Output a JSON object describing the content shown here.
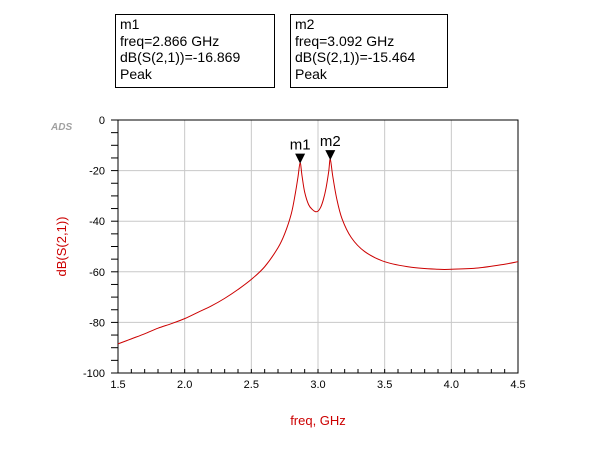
{
  "logo": "ADS",
  "markers": [
    {
      "label": "m1",
      "freq_text": "freq=2.866 GHz",
      "value_text": "dB(S(2,1))=-16.869",
      "note": "Peak",
      "x": 2.866,
      "y": -16.869
    },
    {
      "label": "m2",
      "freq_text": "freq=3.092 GHz",
      "value_text": "dB(S(2,1))=-15.464",
      "note": "Peak",
      "x": 3.092,
      "y": -15.464
    }
  ],
  "chart_data": {
    "type": "line",
    "xlabel": "freq, GHz",
    "ylabel": "dB(S(2,1))",
    "xlim": [
      1.5,
      4.5
    ],
    "ylim": [
      -100,
      0
    ],
    "xticks": [
      "1.5",
      "2.0",
      "2.5",
      "3.0",
      "3.5",
      "4.0",
      "4.5"
    ],
    "yticks": [
      "0",
      "-20",
      "-40",
      "-60",
      "-80",
      "-100"
    ],
    "grid": true,
    "series": [
      {
        "color": "#cc0000",
        "x": [
          1.5,
          1.6,
          1.7,
          1.8,
          1.9,
          2.0,
          2.1,
          2.2,
          2.3,
          2.4,
          2.5,
          2.6,
          2.7,
          2.75,
          2.8,
          2.83,
          2.85,
          2.866,
          2.88,
          2.9,
          2.93,
          2.96,
          2.98,
          3.0,
          3.02,
          3.04,
          3.06,
          3.08,
          3.092,
          3.11,
          3.14,
          3.18,
          3.25,
          3.35,
          3.5,
          3.7,
          3.9,
          4.0,
          4.2,
          4.4,
          4.5
        ],
        "y": [
          -88.5,
          -86.5,
          -84.5,
          -82.3,
          -80.5,
          -78.5,
          -76.0,
          -73.5,
          -70.5,
          -67.0,
          -63.0,
          -58.0,
          -50.5,
          -45.0,
          -37.0,
          -29.0,
          -22.5,
          -16.9,
          -22.0,
          -28.5,
          -33.5,
          -35.5,
          -36.2,
          -36.0,
          -34.5,
          -31.5,
          -27.0,
          -20.5,
          -15.5,
          -22.0,
          -31.0,
          -39.0,
          -46.5,
          -52.0,
          -56.0,
          -58.2,
          -59.0,
          -59.0,
          -58.5,
          -57.0,
          -56.0
        ]
      }
    ]
  }
}
